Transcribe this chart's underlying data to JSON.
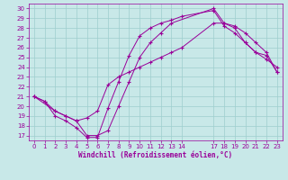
{
  "xlabel": "Windchill (Refroidissement éolien,°C)",
  "bg_color": "#c8e8e8",
  "grid_color": "#9ecece",
  "line_color": "#990099",
  "xlim": [
    -0.5,
    23.5
  ],
  "ylim": [
    16.5,
    30.5
  ],
  "xticks": [
    0,
    1,
    2,
    3,
    4,
    5,
    6,
    7,
    8,
    9,
    10,
    11,
    12,
    13,
    14,
    17,
    18,
    19,
    20,
    21,
    22,
    23
  ],
  "yticks": [
    17,
    18,
    19,
    20,
    21,
    22,
    23,
    24,
    25,
    26,
    27,
    28,
    29,
    30
  ],
  "line1_x": [
    0,
    1,
    2,
    3,
    4,
    5,
    6,
    7,
    8,
    9,
    10,
    11,
    12,
    13,
    17,
    18,
    19,
    20,
    21,
    22,
    23
  ],
  "line1_y": [
    21.0,
    20.5,
    19.5,
    19.0,
    18.5,
    17.0,
    17.0,
    17.5,
    20.0,
    22.5,
    25.0,
    26.5,
    27.5,
    28.5,
    30.0,
    28.5,
    28.0,
    26.5,
    25.5,
    24.8,
    24.0
  ],
  "line2_x": [
    0,
    1,
    2,
    3,
    4,
    5,
    6,
    7,
    8,
    9,
    10,
    11,
    12,
    13,
    14,
    17,
    18,
    19,
    20,
    21,
    22,
    23
  ],
  "line2_y": [
    21.0,
    20.5,
    19.0,
    18.5,
    17.8,
    16.8,
    16.8,
    19.8,
    22.5,
    25.2,
    27.2,
    28.0,
    28.5,
    28.8,
    29.2,
    29.8,
    28.2,
    27.5,
    26.5,
    25.5,
    25.2,
    23.5
  ],
  "line3_x": [
    0,
    2,
    3,
    4,
    5,
    6,
    7,
    8,
    9,
    10,
    11,
    12,
    13,
    14,
    17,
    18,
    19,
    20,
    21,
    22,
    23
  ],
  "line3_y": [
    21.0,
    19.5,
    19.0,
    18.5,
    18.8,
    19.5,
    22.2,
    23.0,
    23.5,
    24.0,
    24.5,
    25.0,
    25.5,
    26.0,
    28.5,
    28.5,
    28.2,
    27.5,
    26.5,
    25.5,
    23.5
  ]
}
